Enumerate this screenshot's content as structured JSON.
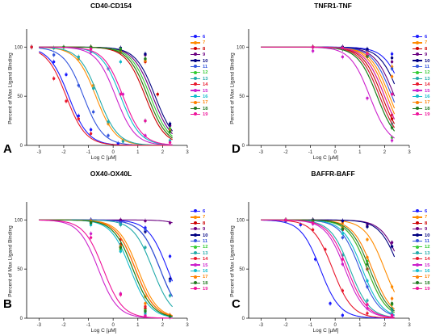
{
  "series_style": [
    {
      "name": "6",
      "color": "#1a1aff"
    },
    {
      "name": "7",
      "color": "#ff8c00"
    },
    {
      "name": "8",
      "color": "#cc0000"
    },
    {
      "name": "9",
      "color": "#6a0080"
    },
    {
      "name": "10",
      "color": "#000080"
    },
    {
      "name": "11",
      "color": "#3355dd"
    },
    {
      "name": "12",
      "color": "#33cc33"
    },
    {
      "name": "13",
      "color": "#22aaaa"
    },
    {
      "name": "14",
      "color": "#e8172b"
    },
    {
      "name": "15",
      "color": "#cc22cc"
    },
    {
      "name": "16",
      "color": "#11bbcc"
    },
    {
      "name": "17",
      "color": "#ff7f00"
    },
    {
      "name": "18",
      "color": "#227a22"
    },
    {
      "name": "19",
      "color": "#ee1199"
    }
  ],
  "chart_data": [
    {
      "panel_label": "A",
      "title": "CD40-CD154",
      "type": "line",
      "xlabel": "Log C [µM]",
      "ylabel": "Percent of Max Ligand Binding",
      "xlim": [
        -3.5,
        3
      ],
      "ylim": [
        0,
        115
      ],
      "xticks": [
        "-3",
        "-2",
        "-1",
        "0",
        "1",
        "2",
        "3"
      ],
      "yticks": [
        "0",
        "50",
        "100"
      ],
      "legend": "right",
      "series": [
        {
          "name": "6",
          "log_ic50": -1.8,
          "x": [
            -3.3,
            -2.4,
            -1.9,
            -1.4,
            -0.9,
            0.2
          ],
          "y": [
            100,
            85,
            72,
            30,
            16,
            2
          ]
        },
        {
          "name": "7",
          "log_ic50": -0.7,
          "x": [
            -3.3,
            -2.4,
            -1.4,
            -0.8,
            -0.2,
            0.4
          ],
          "y": [
            100,
            99,
            88,
            61,
            22,
            5
          ]
        },
        {
          "name": "8",
          "log_ic50": 1.3,
          "x": [
            -0.9,
            0.3,
            1.3,
            1.8,
            2.3
          ],
          "y": [
            99,
            95,
            85,
            52,
            14
          ]
        },
        {
          "name": "9",
          "log_ic50": 1.6,
          "x": [
            -0.9,
            0.3,
            1.3,
            2.3
          ],
          "y": [
            100,
            99,
            92,
            20
          ]
        },
        {
          "name": "10",
          "log_ic50": 1.7,
          "x": [
            -0.9,
            0.3,
            1.3,
            2.3
          ],
          "y": [
            100,
            99,
            93,
            22
          ]
        },
        {
          "name": "11",
          "log_ic50": -1.2,
          "x": [
            -3.3,
            -2.4,
            -1.4,
            -0.8,
            -0.2
          ],
          "y": [
            100,
            92,
            61,
            34,
            10
          ]
        },
        {
          "name": "12",
          "log_ic50": 1.5,
          "x": [
            -0.9,
            0.3,
            1.3,
            2.3
          ],
          "y": [
            100,
            98,
            88,
            17
          ]
        },
        {
          "name": "13",
          "log_ic50": -0.6,
          "x": [
            -3.3,
            -2.4,
            -1.4,
            -0.8,
            -0.2,
            0.4
          ],
          "y": [
            100,
            99,
            90,
            58,
            24,
            4
          ]
        },
        {
          "name": "14",
          "log_ic50": -1.9,
          "x": [
            -3.3,
            -2.4,
            -1.9,
            -1.4,
            -0.9
          ],
          "y": [
            100,
            68,
            45,
            27,
            12
          ]
        },
        {
          "name": "15",
          "log_ic50": 0.1,
          "x": [
            -0.9,
            -0.2,
            0.4,
            1.3
          ],
          "y": [
            95,
            78,
            52,
            10
          ]
        },
        {
          "name": "16",
          "log_ic50": 0.3,
          "x": [
            -0.9,
            0.3,
            1.3,
            2.3
          ],
          "y": [
            99,
            85,
            25,
            5
          ]
        },
        {
          "name": "17",
          "log_ic50": 1.4,
          "x": [
            -0.9,
            0.3,
            1.3,
            2.3
          ],
          "y": [
            100,
            96,
            86,
            15
          ]
        },
        {
          "name": "18",
          "log_ic50": 1.4,
          "x": [
            -2.0,
            -0.9,
            0.3,
            1.3,
            2.3
          ],
          "y": [
            100,
            100,
            97,
            88,
            14
          ]
        },
        {
          "name": "19",
          "log_ic50": 0.4,
          "x": [
            -0.9,
            0.3,
            1.3,
            2.3
          ],
          "y": [
            98,
            52,
            25,
            3
          ]
        }
      ]
    },
    {
      "panel_label": "D",
      "title": "TNFR1-TNF",
      "type": "line",
      "xlabel": "Log C [µM]",
      "ylabel": "Percent of Max Ligand Binding",
      "xlim": [
        -3.5,
        3
      ],
      "ylim": [
        0,
        115
      ],
      "xticks": [
        "-3",
        "-2",
        "-1",
        "0",
        "1",
        "2",
        "3"
      ],
      "yticks": [
        "0",
        "50",
        "100"
      ],
      "legend": "right",
      "series": [
        {
          "name": "6",
          "log_ic50": 2.8,
          "x": [
            -0.9,
            0.3,
            1.3,
            2.3
          ],
          "y": [
            100,
            99,
            97,
            93
          ]
        },
        {
          "name": "7",
          "log_ic50": 2.2,
          "x": [
            -0.9,
            0.3,
            1.3,
            2.3
          ],
          "y": [
            100,
            98,
            95,
            80
          ]
        },
        {
          "name": "8",
          "log_ic50": 1.9,
          "x": [
            -0.9,
            0.3,
            1.3,
            2.3
          ],
          "y": [
            100,
            99,
            92,
            27
          ]
        },
        {
          "name": "9",
          "log_ic50": 2.4,
          "x": [
            -0.9,
            0.3,
            1.3,
            2.3
          ],
          "y": [
            100,
            100,
            97,
            85
          ]
        },
        {
          "name": "10",
          "log_ic50": 2.6,
          "x": [
            -0.9,
            0.3,
            1.3,
            2.3
          ],
          "y": [
            100,
            100,
            98,
            89
          ]
        },
        {
          "name": "11",
          "log_ic50": 2.3,
          "x": [
            -0.9,
            0.3,
            1.3,
            2.3
          ],
          "y": [
            100,
            99,
            95,
            78
          ]
        },
        {
          "name": "12",
          "log_ic50": 1.7,
          "x": [
            -0.9,
            0.3,
            1.3,
            2.3
          ],
          "y": [
            100,
            98,
            90,
            8
          ]
        },
        {
          "name": "13",
          "log_ic50": 1.8,
          "x": [
            -0.9,
            0.3,
            1.3,
            2.3
          ],
          "y": [
            100,
            98,
            90,
            22
          ]
        },
        {
          "name": "14",
          "log_ic50": 1.8,
          "x": [
            -0.9,
            0.3,
            1.3,
            2.3
          ],
          "y": [
            100,
            99,
            91,
            31
          ]
        },
        {
          "name": "15",
          "log_ic50": 1.4,
          "x": [
            -0.9,
            0.3,
            1.3,
            2.3
          ],
          "y": [
            96,
            90,
            48,
            5
          ]
        },
        {
          "name": "16",
          "log_ic50": 2.0,
          "x": [
            -0.9,
            0.3,
            1.3,
            2.3
          ],
          "y": [
            100,
            99,
            93,
            52
          ]
        },
        {
          "name": "17",
          "log_ic50": 2.1,
          "x": [
            -0.9,
            0.3,
            1.3,
            2.3
          ],
          "y": [
            100,
            99,
            94,
            70
          ]
        },
        {
          "name": "18",
          "log_ic50": 1.7,
          "x": [
            -0.9,
            0.3,
            1.3,
            2.3
          ],
          "y": [
            100,
            98,
            91,
            18
          ]
        },
        {
          "name": "19",
          "log_ic50": 2.0,
          "x": [
            -0.9,
            0.3,
            1.3,
            2.3
          ],
          "y": [
            100,
            99,
            93,
            52
          ]
        }
      ]
    },
    {
      "panel_label": "B",
      "title": "OX40-OX40L",
      "type": "line",
      "xlabel": "Log C [µM]",
      "ylabel": "Percent of Max Ligand Binding",
      "xlim": [
        -3.5,
        3
      ],
      "ylim": [
        0,
        115
      ],
      "xticks": [
        "-3",
        "-2",
        "-1",
        "0",
        "1",
        "2",
        "3"
      ],
      "yticks": [
        "0",
        "50",
        "100"
      ],
      "legend": "right",
      "series": [
        {
          "name": "6",
          "log_ic50": 2.2,
          "x": [
            -0.9,
            0.3,
            1.3,
            2.3
          ],
          "y": [
            100,
            98,
            92,
            63
          ]
        },
        {
          "name": "7",
          "log_ic50": 1.0,
          "x": [
            -0.9,
            0.3,
            1.3,
            2.3
          ],
          "y": [
            99,
            72,
            22,
            3
          ]
        },
        {
          "name": "8",
          "log_ic50": 0.9,
          "x": [
            -0.9,
            0.3,
            1.3,
            2.3
          ],
          "y": [
            98,
            75,
            10,
            2
          ]
        },
        {
          "name": "9",
          "log_ic50": 3.8,
          "x": [
            -0.9,
            0.3,
            1.3,
            2.3
          ],
          "y": [
            100,
            100,
            99,
            97
          ]
        },
        {
          "name": "10",
          "log_ic50": 1.9,
          "x": [
            -0.9,
            0.3,
            1.3,
            2.3
          ],
          "y": [
            98,
            96,
            88,
            40
          ]
        },
        {
          "name": "11",
          "log_ic50": 1.9,
          "x": [
            -0.9,
            0.3,
            1.3,
            2.3
          ],
          "y": [
            100,
            97,
            90,
            38
          ]
        },
        {
          "name": "12",
          "log_ic50": 0.8,
          "x": [
            -0.9,
            0.3,
            1.3,
            2.3
          ],
          "y": [
            97,
            70,
            8,
            2
          ]
        },
        {
          "name": "13",
          "log_ic50": 1.6,
          "x": [
            -0.9,
            0.3,
            1.3,
            2.3
          ],
          "y": [
            99,
            95,
            72,
            23
          ]
        },
        {
          "name": "14",
          "log_ic50": 0.9,
          "x": [
            -0.9,
            0.3,
            1.3,
            2.3
          ],
          "y": [
            98,
            80,
            12,
            3
          ]
        },
        {
          "name": "15",
          "log_ic50": -0.6,
          "x": [
            -0.9,
            0.3,
            1.3
          ],
          "y": [
            86,
            25,
            3
          ]
        },
        {
          "name": "16",
          "log_ic50": 0.7,
          "x": [
            -0.9,
            0.3,
            1.3,
            2.3
          ],
          "y": [
            95,
            68,
            5,
            1
          ]
        },
        {
          "name": "17",
          "log_ic50": 0.9,
          "x": [
            -0.9,
            0.3,
            1.3,
            2.3
          ],
          "y": [
            99,
            73,
            15,
            3
          ]
        },
        {
          "name": "18",
          "log_ic50": 0.8,
          "x": [
            -0.9,
            0.3,
            1.3,
            2.3
          ],
          "y": [
            97,
            72,
            7,
            2
          ]
        },
        {
          "name": "19",
          "log_ic50": -0.4,
          "x": [
            -0.9,
            0.3,
            1.3
          ],
          "y": [
            82,
            24,
            2
          ]
        }
      ]
    },
    {
      "panel_label": "C",
      "title": "BAFFR-BAFF",
      "type": "line",
      "xlabel": "Log C [µM]",
      "ylabel": "Percent of Max Ligand Binding",
      "xlim": [
        -3.5,
        3
      ],
      "ylim": [
        0,
        115
      ],
      "xticks": [
        "-3",
        "-2",
        "-1",
        "0",
        "1",
        "2",
        "3"
      ],
      "yticks": [
        "0",
        "50",
        "100"
      ],
      "legend": "right",
      "series": [
        {
          "name": "6",
          "log_ic50": -0.6,
          "x": [
            -2.0,
            -1.4,
            -0.8,
            -0.2,
            0.3
          ],
          "y": [
            99,
            95,
            60,
            15,
            3
          ]
        },
        {
          "name": "7",
          "log_ic50": 2.0,
          "x": [
            -2.0,
            -0.9,
            0.3,
            1.3,
            2.3
          ],
          "y": [
            100,
            100,
            97,
            80,
            32
          ]
        },
        {
          "name": "8",
          "log_ic50": 1.3,
          "x": [
            -2.0,
            -0.9,
            0.3,
            1.3,
            2.3
          ],
          "y": [
            100,
            99,
            90,
            50,
            10
          ]
        },
        {
          "name": "9",
          "log_ic50": 2.7,
          "x": [
            -2.0,
            -0.9,
            0.3,
            1.3,
            2.3
          ],
          "y": [
            100,
            100,
            99,
            95,
            77
          ]
        },
        {
          "name": "10",
          "log_ic50": 2.6,
          "x": [
            -2.0,
            -0.9,
            0.3,
            1.3,
            2.3
          ],
          "y": [
            100,
            100,
            99,
            93,
            73
          ]
        },
        {
          "name": "11",
          "log_ic50": 1.0,
          "x": [
            -2.0,
            -0.9,
            0.3,
            1.3,
            2.3
          ],
          "y": [
            100,
            98,
            82,
            32,
            8
          ]
        },
        {
          "name": "12",
          "log_ic50": 1.3,
          "x": [
            -2.0,
            -0.9,
            0.3,
            1.3,
            2.3
          ],
          "y": [
            100,
            99,
            92,
            58,
            14
          ]
        },
        {
          "name": "13",
          "log_ic50": 0.6,
          "x": [
            -2.0,
            -0.9,
            0.3,
            1.3,
            2.3
          ],
          "y": [
            100,
            97,
            64,
            18,
            5
          ]
        },
        {
          "name": "14",
          "log_ic50": -0.1,
          "x": [
            -2.0,
            -0.9,
            -0.4,
            0.3,
            1.3
          ],
          "y": [
            100,
            90,
            70,
            28,
            5
          ]
        },
        {
          "name": "15",
          "log_ic50": 0.4,
          "x": [
            -2.0,
            -0.9,
            0.3,
            1.3,
            2.3
          ],
          "y": [
            100,
            96,
            55,
            10,
            2
          ]
        },
        {
          "name": "16",
          "log_ic50": 1.1,
          "x": [
            -2.0,
            -0.9,
            0.3,
            1.3,
            2.3
          ],
          "y": [
            100,
            99,
            86,
            38,
            10
          ]
        },
        {
          "name": "17",
          "log_ic50": 1.5,
          "x": [
            -2.0,
            -0.9,
            0.3,
            1.3,
            2.3
          ],
          "y": [
            100,
            99,
            92,
            62,
            20
          ]
        },
        {
          "name": "18",
          "log_ic50": 1.4,
          "x": [
            -2.0,
            -0.9,
            0.3,
            1.3,
            2.3
          ],
          "y": [
            100,
            99,
            91,
            55,
            15
          ]
        },
        {
          "name": "19",
          "log_ic50": 0.5,
          "x": [
            -2.0,
            -0.9,
            0.3,
            1.3,
            2.3
          ],
          "y": [
            100,
            97,
            60,
            14,
            3
          ]
        }
      ]
    }
  ]
}
